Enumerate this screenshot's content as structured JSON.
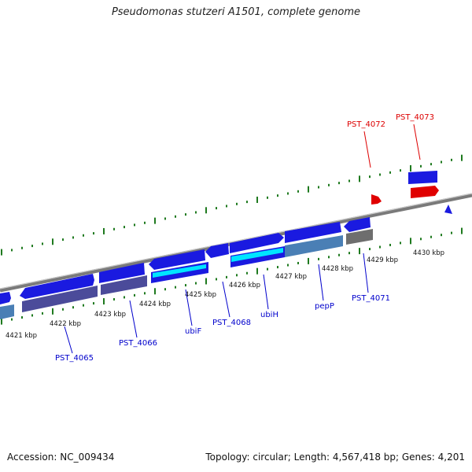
{
  "title": "Pseudomonas stutzeri A1501, complete genome",
  "footer": {
    "accession": "Accession: NC_009434",
    "summary": "Topology: circular; Length: 4,567,418 bp; Genes: 4,201"
  },
  "colors": {
    "axis": "#888888",
    "ticks": "#1f7a1f",
    "cds_forward": "#1a1ae0",
    "cds_reverse": "#3030c8",
    "gene_dark": "#4b4b9a",
    "gene_cyan": "#00e5ff",
    "gene_steel": "#4a7fb5",
    "gene_grey": "#6e6e6e",
    "highlight": "#e00000",
    "label_blue": "#0000cc",
    "label_red": "#dd0000"
  },
  "axis_labels": [
    "4421 kbp",
    "4422 kbp",
    "4423 kbp",
    "4424 kbp",
    "4425 kbp",
    "4426 kbp",
    "4427 kbp",
    "4428 kbp",
    "4429 kbp",
    "4430 kbp"
  ],
  "gene_labels": [
    {
      "text": "PST_4065",
      "color": "blue"
    },
    {
      "text": "PST_4066",
      "color": "blue"
    },
    {
      "text": "ubiF",
      "color": "blue"
    },
    {
      "text": "PST_4068",
      "color": "blue"
    },
    {
      "text": "ubiH",
      "color": "blue"
    },
    {
      "text": "pepP",
      "color": "blue"
    },
    {
      "text": "PST_4071",
      "color": "blue"
    },
    {
      "text": "PST_4072",
      "color": "red"
    },
    {
      "text": "PST_4073",
      "color": "red"
    }
  ]
}
